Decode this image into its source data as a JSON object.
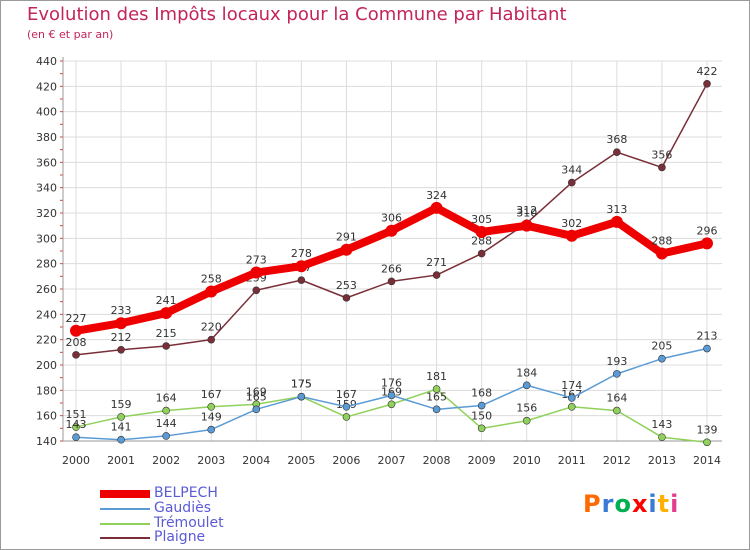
{
  "header": {
    "title": "Evolution des Impôts locaux pour la Commune par Habitant",
    "subtitle": "(en € et par an)"
  },
  "legend": {
    "items": [
      {
        "label": "BELPECH",
        "color": "#ee0000"
      },
      {
        "label": "Gaudiès",
        "color": "#5b9bd5"
      },
      {
        "label": "Trémoulet",
        "color": "#8fd15a"
      },
      {
        "label": "Plaigne",
        "color": "#7a2e38"
      }
    ]
  },
  "logo": {
    "text": "Proxiti",
    "colors": [
      "#ff6a00",
      "#3a7bd5",
      "#00b050",
      "#ff0000",
      "#3a7bd5",
      "#ffb000",
      "#e43c8c"
    ]
  },
  "chart_data": {
    "type": "line",
    "title": "Evolution des Impôts locaux pour la Commune par Habitant",
    "subtitle": "(en € et par an)",
    "x": [
      "2000",
      "2001",
      "2002",
      "2003",
      "2004",
      "2005",
      "2006",
      "2007",
      "2008",
      "2009",
      "2010",
      "2011",
      "2012",
      "2013",
      "2014"
    ],
    "ylim": [
      140,
      440
    ],
    "yticks": [
      140,
      160,
      180,
      200,
      220,
      240,
      260,
      280,
      300,
      320,
      340,
      360,
      380,
      400,
      420,
      440
    ],
    "grid": true,
    "series": [
      {
        "name": "BELPECH",
        "color": "#ee0000",
        "values": [
          227,
          233,
          241,
          258,
          273,
          278,
          291,
          306,
          324,
          305,
          310,
          302,
          313,
          288,
          296
        ]
      },
      {
        "name": "Gaudiès",
        "color": "#5b9bd5",
        "values": [
          143,
          141,
          144,
          149,
          165,
          175,
          167,
          176,
          165,
          168,
          184,
          174,
          193,
          205,
          213
        ]
      },
      {
        "name": "Trémoulet",
        "color": "#8fd15a",
        "values": [
          151,
          159,
          164,
          167,
          169,
          175,
          159,
          169,
          181,
          150,
          156,
          167,
          164,
          143,
          139
        ]
      },
      {
        "name": "Plaigne",
        "color": "#7a2e38",
        "values": [
          208,
          212,
          215,
          220,
          259,
          267,
          253,
          266,
          271,
          288,
          312,
          344,
          368,
          356,
          422
        ]
      }
    ]
  }
}
